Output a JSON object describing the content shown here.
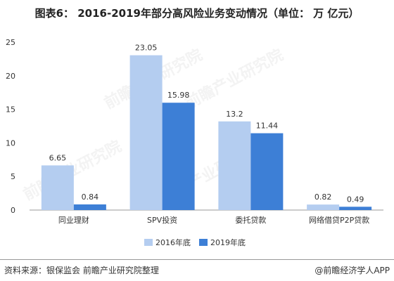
{
  "title": "图表6： 2016-2019年部分高风险业务变动情况（单位：  万 亿元）",
  "chart_data": {
    "type": "bar",
    "categories": [
      "同业理财",
      "SPV投资",
      "委托贷款",
      "网络借贷P2P贷款"
    ],
    "series": [
      {
        "name": "2016年底",
        "values": [
          6.65,
          23.05,
          13.2,
          0.82
        ],
        "labels": [
          "6.65",
          "23.05",
          "13.2",
          "0.82"
        ],
        "color": "#b4cdf0"
      },
      {
        "name": "2019年底",
        "values": [
          0.84,
          15.98,
          11.44,
          0.49
        ],
        "labels": [
          "0.84",
          "15.98",
          "11.44",
          "0.49"
        ],
        "color": "#3d7fd6"
      }
    ],
    "ylim": [
      0,
      25
    ],
    "yticks": [
      0,
      5,
      10,
      15,
      20,
      25
    ],
    "grid": false,
    "legend": "bottom"
  },
  "footer": {
    "source": "资料来源：银保监会 前瞻产业研究院整理",
    "brand": "@前瞻经济学人APP"
  },
  "watermark_text": "前瞻产业研究院"
}
